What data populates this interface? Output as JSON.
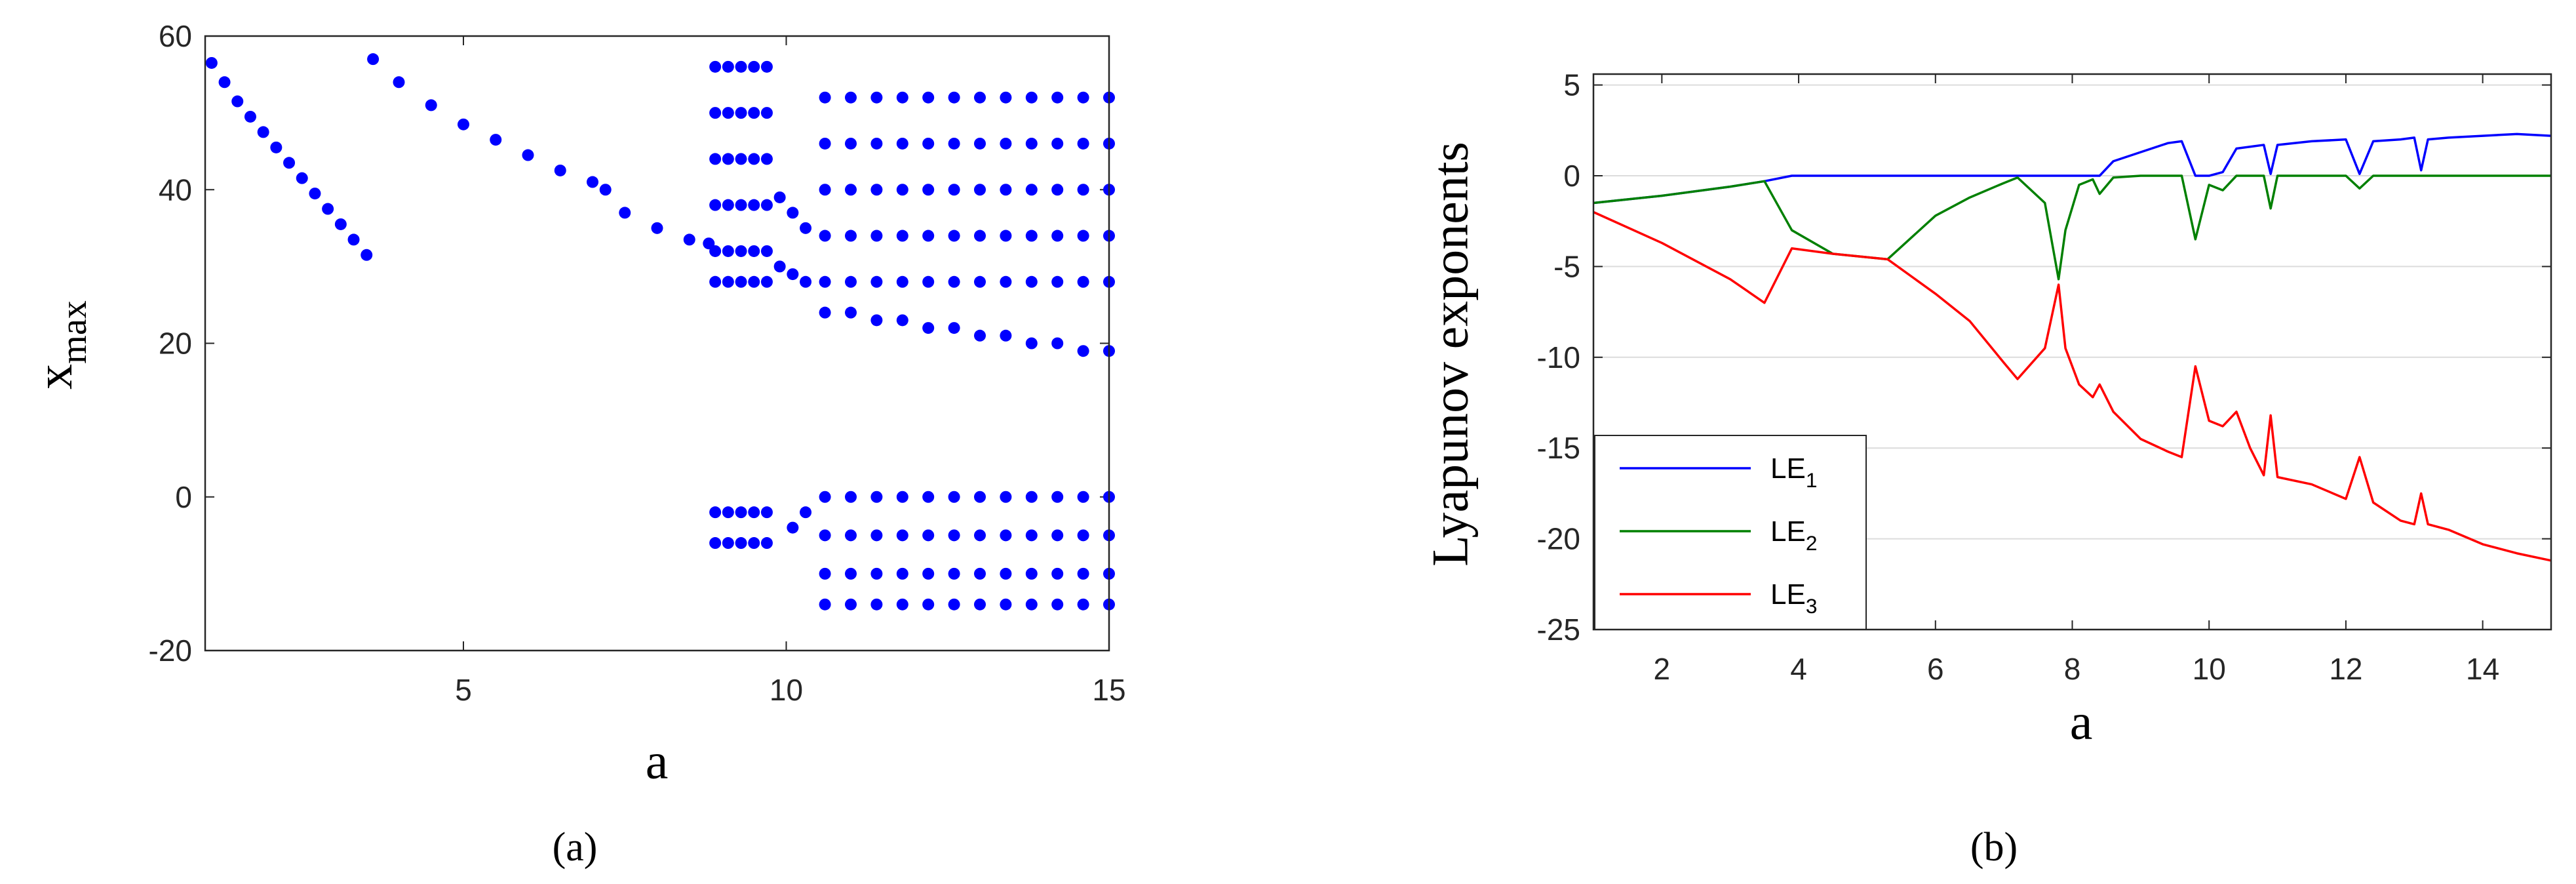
{
  "chart_data": [
    {
      "type": "scatter",
      "caption": "(a)",
      "xlabel": "a",
      "ylabel": "xmax",
      "xlim": [
        1,
        15
      ],
      "ylim": [
        -20,
        60
      ],
      "xticks": [
        5,
        10,
        15
      ],
      "yticks": [
        -20,
        0,
        20,
        40,
        60
      ],
      "grid": false,
      "color": "#0000ff",
      "x": [
        1.1,
        1.3,
        1.5,
        1.7,
        1.9,
        2.1,
        2.3,
        2.5,
        2.7,
        2.9,
        3.1,
        3.3,
        3.5,
        3.6,
        4,
        4.5,
        5,
        5.5,
        6,
        6.5,
        7,
        7.2,
        7.5,
        8,
        8.5,
        8.8,
        8.9,
        8.9,
        8.9,
        8.9,
        8.9,
        8.9,
        8.9,
        8.9,
        9.1,
        9.1,
        9.1,
        9.1,
        9.1,
        9.1,
        9.1,
        9.1,
        9.3,
        9.3,
        9.3,
        9.3,
        9.3,
        9.3,
        9.3,
        9.3,
        9.5,
        9.5,
        9.5,
        9.5,
        9.5,
        9.5,
        9.5,
        9.5,
        9.7,
        9.7,
        9.7,
        9.7,
        9.7,
        9.7,
        9.7,
        9.7,
        9.9,
        9.9,
        10.1,
        10.1,
        10.1,
        10.3,
        10.3,
        10.3,
        10.6,
        10.6,
        10.6,
        10.6,
        10.6,
        10.6,
        10.6,
        10.6,
        10.6,
        10.6,
        11,
        11,
        11,
        11,
        11,
        11,
        11,
        11,
        11,
        11,
        11.4,
        11.4,
        11.4,
        11.4,
        11.4,
        11.4,
        11.4,
        11.4,
        11.4,
        11.4,
        11.8,
        11.8,
        11.8,
        11.8,
        11.8,
        11.8,
        11.8,
        11.8,
        11.8,
        11.8,
        12.2,
        12.2,
        12.2,
        12.2,
        12.2,
        12.2,
        12.2,
        12.2,
        12.2,
        12.2,
        12.6,
        12.6,
        12.6,
        12.6,
        12.6,
        12.6,
        12.6,
        12.6,
        12.6,
        12.6,
        13,
        13,
        13,
        13,
        13,
        13,
        13,
        13,
        13,
        13,
        13.4,
        13.4,
        13.4,
        13.4,
        13.4,
        13.4,
        13.4,
        13.4,
        13.4,
        13.4,
        13.8,
        13.8,
        13.8,
        13.8,
        13.8,
        13.8,
        13.8,
        13.8,
        13.8,
        13.8,
        14.2,
        14.2,
        14.2,
        14.2,
        14.2,
        14.2,
        14.2,
        14.2,
        14.2,
        14.2,
        14.6,
        14.6,
        14.6,
        14.6,
        14.6,
        14.6,
        14.6,
        14.6,
        14.6,
        14.6,
        15,
        15,
        15,
        15,
        15,
        15,
        15,
        15,
        15,
        15
      ],
      "values": [
        56.5,
        54,
        51.5,
        49.5,
        47.5,
        45.5,
        43.5,
        41.5,
        39.5,
        37.5,
        35.5,
        33.5,
        31.5,
        57,
        54,
        51,
        48.5,
        46.5,
        44.5,
        42.5,
        41,
        40,
        37,
        35,
        33.5,
        33,
        56,
        50,
        44,
        38,
        32,
        28,
        -2,
        -6,
        56,
        50,
        44,
        38,
        32,
        28,
        -2,
        -6,
        56,
        50,
        44,
        38,
        32,
        28,
        -2,
        -6,
        56,
        50,
        44,
        38,
        32,
        28,
        -2,
        -6,
        56,
        50,
        44,
        38,
        32,
        28,
        -2,
        -6,
        39,
        30,
        37,
        29,
        -4,
        35,
        28,
        -2,
        52,
        46,
        40,
        34,
        28,
        24,
        0,
        -5,
        -10,
        -14,
        52,
        46,
        40,
        34,
        28,
        24,
        0,
        -5,
        -10,
        -14,
        52,
        46,
        40,
        34,
        28,
        23,
        0,
        -5,
        -10,
        -14,
        52,
        46,
        40,
        34,
        28,
        23,
        0,
        -5,
        -10,
        -14,
        52,
        46,
        40,
        34,
        28,
        22,
        0,
        -5,
        -10,
        -14,
        52,
        46,
        40,
        34,
        28,
        22,
        0,
        -5,
        -10,
        -14,
        52,
        46,
        40,
        34,
        28,
        21,
        0,
        -5,
        -10,
        -14,
        52,
        46,
        40,
        34,
        28,
        21,
        0,
        -5,
        -10,
        -14,
        52,
        46,
        40,
        34,
        28,
        20,
        0,
        -5,
        -10,
        -14,
        52,
        46,
        40,
        34,
        28,
        20,
        0,
        -5,
        -10,
        -14,
        52,
        46,
        40,
        34,
        28,
        19,
        0,
        -5,
        -10,
        -14,
        52,
        46,
        40,
        34,
        28,
        19,
        0,
        -5,
        -10,
        -14
      ]
    },
    {
      "type": "line",
      "caption": "(b)",
      "xlabel": "a",
      "ylabel": "Lyapunov exponents",
      "xlim": [
        1,
        15
      ],
      "ylim": [
        -25,
        5.6
      ],
      "xticks": [
        2,
        4,
        6,
        8,
        10,
        12,
        14
      ],
      "yticks": [
        -25,
        -20,
        -15,
        -10,
        -5,
        0,
        5
      ],
      "grid": true,
      "legend": "lower left",
      "x": [
        1,
        2,
        3,
        3.5,
        3.9,
        4.5,
        5.3,
        6,
        6.5,
        7,
        7.2,
        7.6,
        7.8,
        7.9,
        8.1,
        8.3,
        8.4,
        8.6,
        9,
        9.4,
        9.6,
        9.8,
        10,
        10.2,
        10.4,
        10.6,
        10.8,
        10.9,
        11,
        11.5,
        12,
        12.2,
        12.4,
        12.8,
        13,
        13.1,
        13.2,
        13.5,
        14,
        14.5,
        15
      ],
      "series": [
        {
          "name": "LE1",
          "color": "#0000ff",
          "values": [
            -1.5,
            -1.1,
            -0.6,
            -0.3,
            0,
            0,
            0,
            0,
            0,
            0,
            0,
            0,
            0,
            0,
            0,
            0,
            0,
            0.8,
            1.3,
            1.8,
            1.9,
            0,
            0,
            0.2,
            1.5,
            1.6,
            1.7,
            0.1,
            1.7,
            1.9,
            2,
            0.1,
            1.9,
            2,
            2.1,
            0.3,
            2,
            2.1,
            2.2,
            2.3,
            2.2
          ]
        },
        {
          "name": "LE2",
          "color": "#008000",
          "values": [
            -1.5,
            -1.1,
            -0.6,
            -0.3,
            -3,
            -4.3,
            -4.6,
            -2.2,
            -1.2,
            -0.4,
            -0.1,
            -1.5,
            -5.7,
            -3,
            -0.5,
            -0.2,
            -1,
            -0.1,
            0,
            0,
            0,
            -3.5,
            -0.5,
            -0.8,
            0,
            0,
            0,
            -1.8,
            0,
            0,
            0,
            -0.7,
            0,
            0,
            0,
            0,
            0,
            0,
            0,
            0,
            0
          ]
        },
        {
          "name": "LE3",
          "color": "#ff0000",
          "values": [
            -2,
            -3.7,
            -5.7,
            -7,
            -4,
            -4.3,
            -4.6,
            -6.5,
            -8,
            -10.3,
            -11.2,
            -9.5,
            -6,
            -9.5,
            -11.5,
            -12.2,
            -11.5,
            -13,
            -14.5,
            -15.2,
            -15.5,
            -10.5,
            -13.5,
            -13.8,
            -13,
            -15,
            -16.5,
            -13.2,
            -16.6,
            -17,
            -17.8,
            -15.5,
            -18,
            -19,
            -19.2,
            -17.5,
            -19.2,
            -19.5,
            -20.3,
            -20.8,
            -21.2
          ]
        }
      ]
    }
  ]
}
